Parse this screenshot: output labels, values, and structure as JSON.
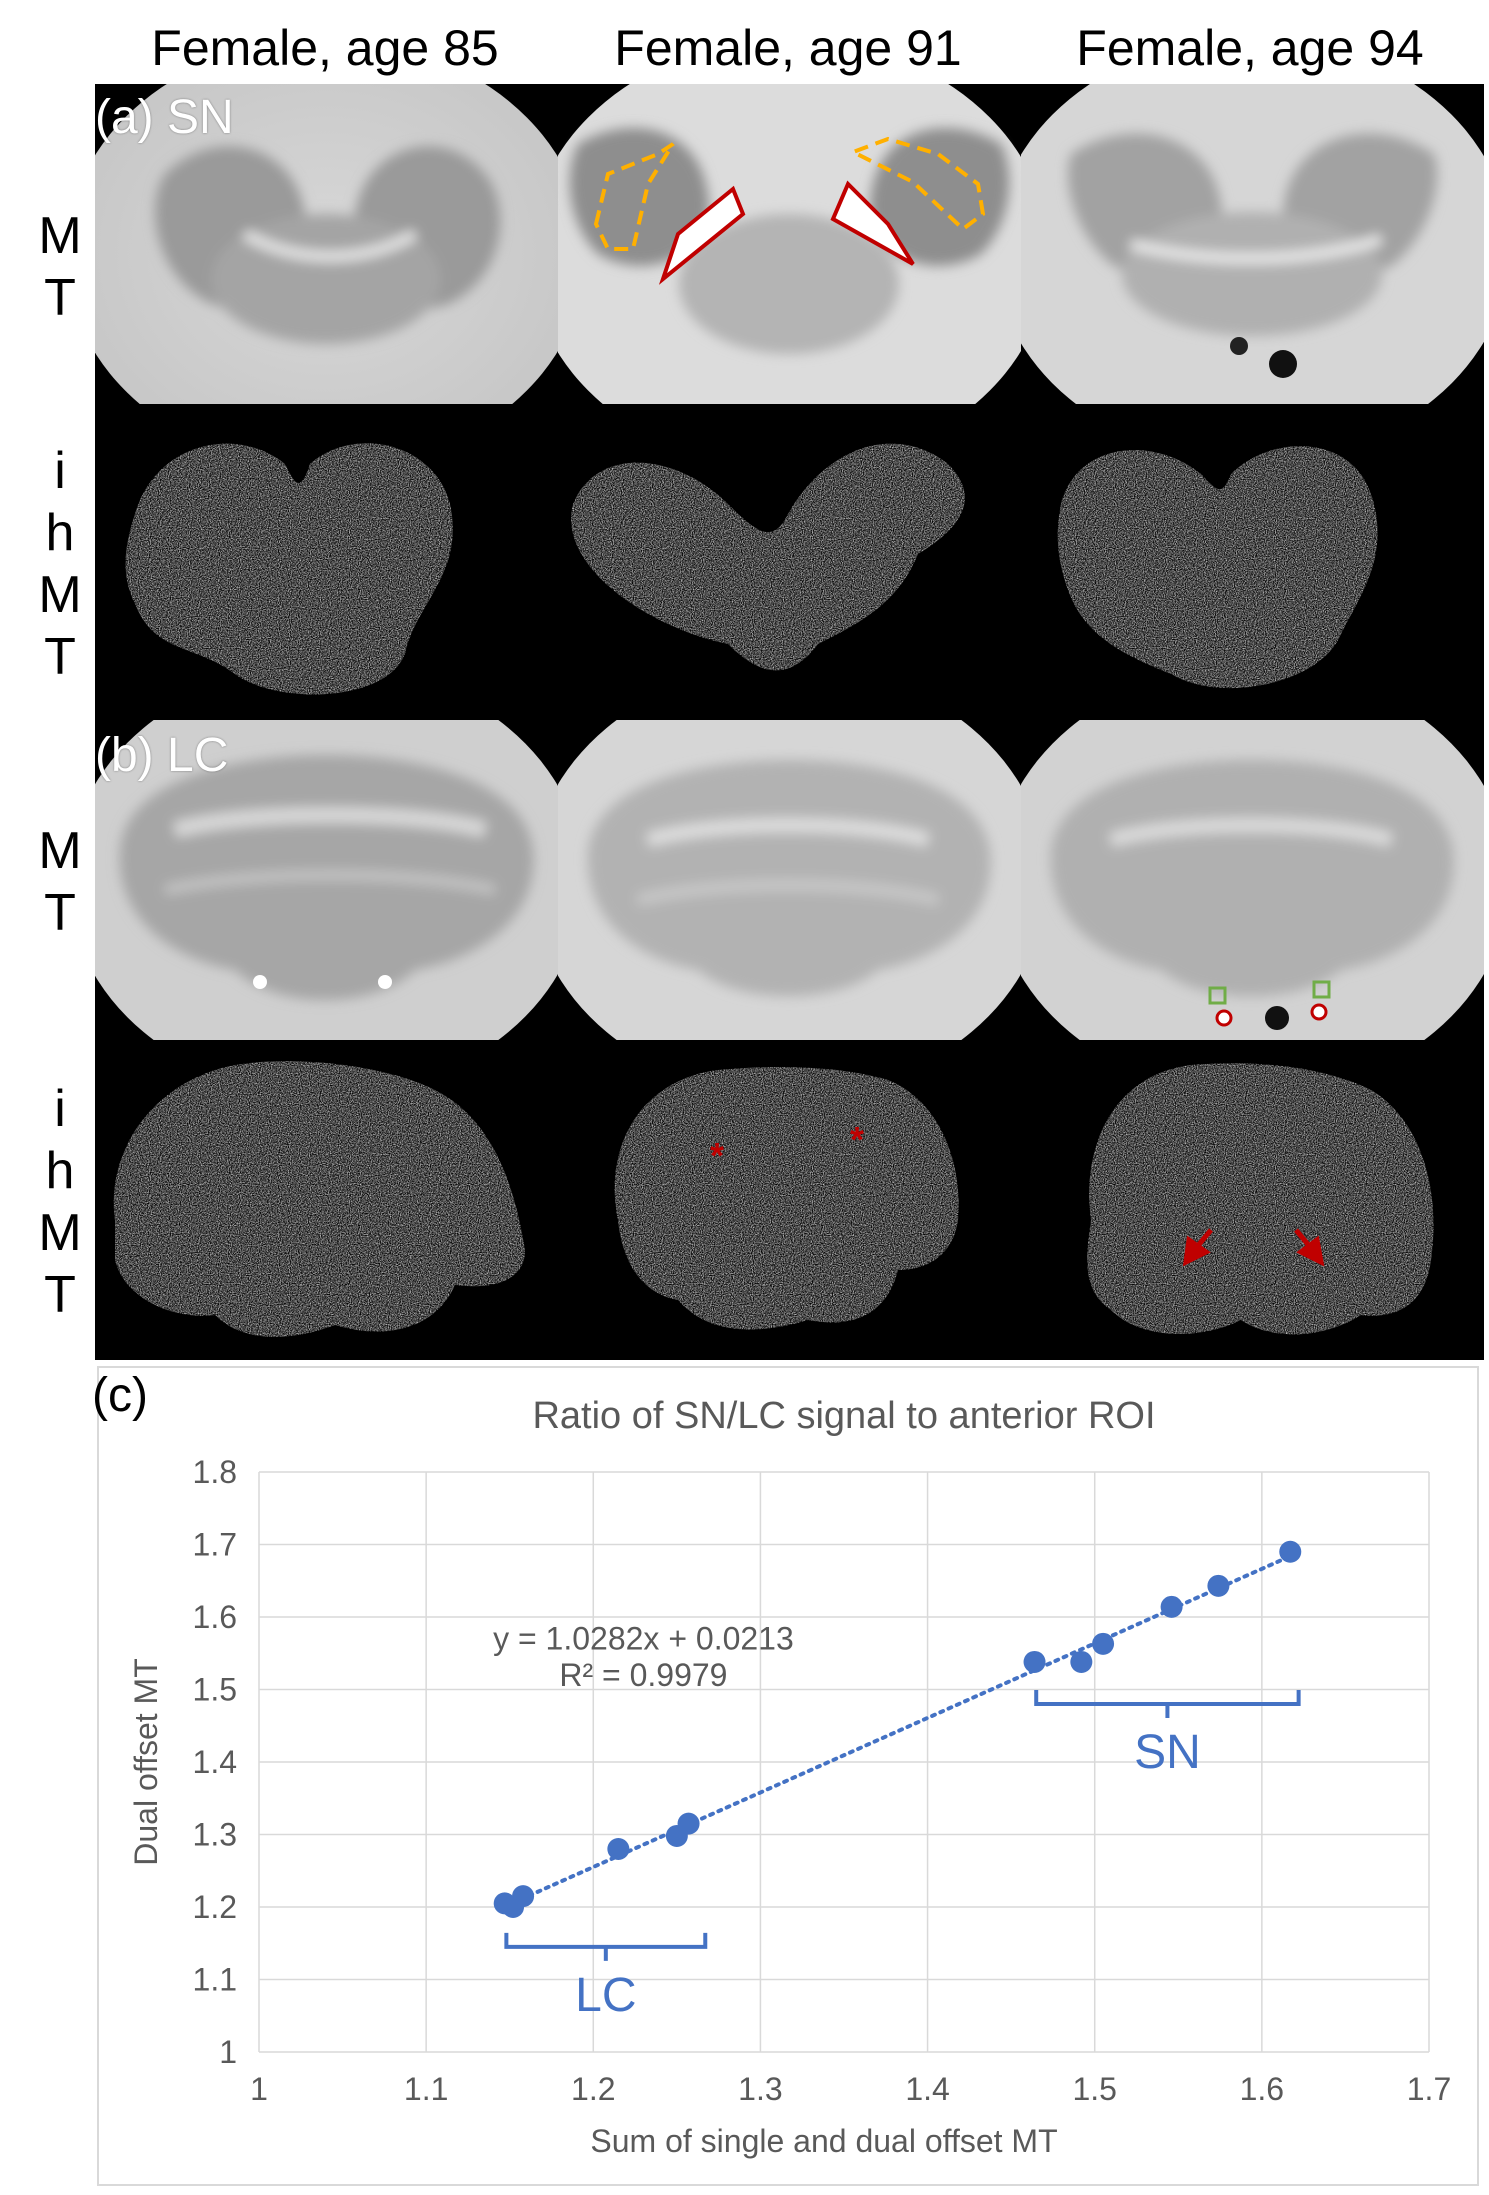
{
  "columns": [
    "Female, age 85",
    "Female, age 91",
    "Female, age 94"
  ],
  "rows": [
    {
      "label_letters": [
        "M",
        "T"
      ]
    },
    {
      "label_letters": [
        "i",
        "h",
        "M",
        "T"
      ]
    },
    {
      "label_letters": [
        "M",
        "T"
      ]
    },
    {
      "label_letters": [
        "i",
        "h",
        "M",
        "T"
      ]
    }
  ],
  "panel_tags": {
    "a": "(a) SN",
    "b": "(b) LC",
    "c": "(c)"
  },
  "annotation_marks": {
    "asterisk": "*"
  },
  "colors": {
    "roi_red": "#c00000",
    "roi_orange": "#ffb000",
    "roi_green": "#70ad47",
    "series_blue": "#4472c4",
    "grid": "#d9d9d9",
    "axis_text": "#595959"
  },
  "chart_data": {
    "type": "scatter",
    "title": "Ratio of SN/LC signal to anterior ROI",
    "xlabel": "Sum of single and dual offset MT",
    "ylabel": "Dual offset MT",
    "xlim": [
      1,
      1.7
    ],
    "ylim": [
      1,
      1.8
    ],
    "xticks": [
      "1",
      "1.1",
      "1.2",
      "1.3",
      "1.4",
      "1.5",
      "1.6",
      "1.7"
    ],
    "yticks": [
      "1",
      "1.1",
      "1.2",
      "1.3",
      "1.4",
      "1.5",
      "1.6",
      "1.7",
      "1.8"
    ],
    "grid": true,
    "series": [
      {
        "x": [
          1.147,
          1.152,
          1.158,
          1.215,
          1.25,
          1.257,
          1.464,
          1.492,
          1.505,
          1.546,
          1.574,
          1.617
        ],
        "y": [
          1.205,
          1.2,
          1.215,
          1.28,
          1.298,
          1.315,
          1.538,
          1.538,
          1.563,
          1.614,
          1.643,
          1.69
        ]
      }
    ],
    "trendline": {
      "slope": 1.0282,
      "intercept": 0.0213,
      "style": "dotted",
      "equation_text": "y = 1.0282x + 0.0213",
      "r2_text": "R² = 0.9979"
    },
    "group_brackets": [
      {
        "label": "LC",
        "x_range": [
          1.148,
          1.267
        ],
        "y_at": 1.145
      },
      {
        "label": "SN",
        "x_range": [
          1.465,
          1.622
        ],
        "y_at": 1.48
      }
    ]
  }
}
